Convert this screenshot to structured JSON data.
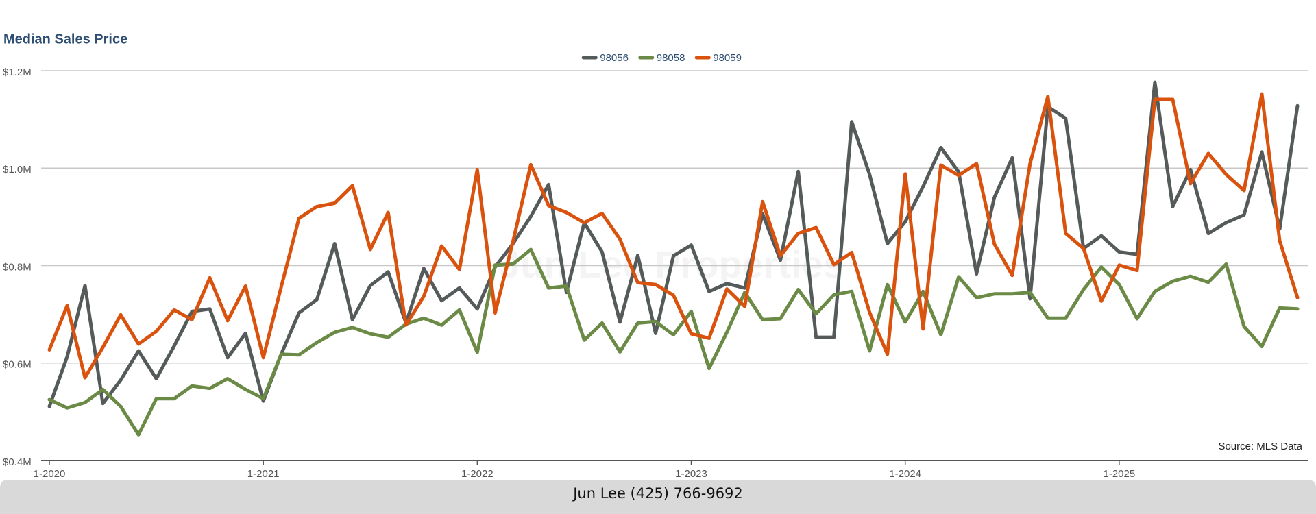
{
  "chart_data": {
    "type": "line",
    "title": "Median Sales Price",
    "watermark": "Jun Lee Properties",
    "source": "Source: MLS Data",
    "footer": "Jun Lee (425) 766-9692",
    "categories": [
      "1-2020",
      null,
      null,
      null,
      null,
      null,
      null,
      null,
      null,
      null,
      null,
      null,
      "1-2021",
      null,
      null,
      null,
      null,
      null,
      null,
      null,
      null,
      null,
      null,
      null,
      "1-2022",
      null,
      null,
      null,
      null,
      null,
      null,
      null,
      null,
      null,
      null,
      null,
      "1-2023",
      null,
      null,
      null,
      null,
      null,
      null,
      null,
      null,
      null,
      null,
      null,
      "1-2024",
      null,
      null,
      null,
      null,
      null,
      null,
      null,
      null,
      null,
      null,
      null,
      "1-2025",
      null,
      null,
      null,
      null,
      null,
      null,
      null,
      null,
      null,
      null
    ],
    "series": [
      {
        "name": "98056",
        "color": "#555b5a",
        "values": [
          511000,
          613000,
          759000,
          517000,
          565000,
          625000,
          568000,
          635000,
          706000,
          711000,
          611000,
          661000,
          522000,
          618000,
          703000,
          730000,
          845000,
          689000,
          759000,
          787000,
          682000,
          794000,
          728000,
          754000,
          711000,
          797000,
          845000,
          901000,
          966000,
          745000,
          888000,
          828000,
          684000,
          821000,
          661000,
          820000,
          842000,
          747000,
          763000,
          754000,
          906000,
          811000,
          993000,
          653000,
          653000,
          1095000,
          987000,
          845000,
          890000,
          962000,
          1042000,
          992000,
          783000,
          940000,
          1021000,
          732000,
          1126000,
          1102000,
          835000,
          861000,
          828000,
          823000,
          1176000,
          921000,
          997000,
          866000,
          888000,
          904000,
          1033000,
          875000,
          1128000
        ]
      },
      {
        "name": "98058",
        "color": "#6a8a45",
        "values": [
          525000,
          508000,
          519000,
          546000,
          511000,
          453000,
          527000,
          527000,
          553000,
          548000,
          568000,
          546000,
          527000,
          618000,
          617000,
          642000,
          663000,
          673000,
          660000,
          653000,
          680000,
          692000,
          678000,
          709000,
          622000,
          801000,
          803000,
          833000,
          754000,
          758000,
          647000,
          682000,
          623000,
          682000,
          685000,
          658000,
          706000,
          589000,
          663000,
          745000,
          689000,
          691000,
          751000,
          701000,
          740000,
          747000,
          625000,
          761000,
          684000,
          747000,
          658000,
          777000,
          734000,
          742000,
          742000,
          745000,
          692000,
          692000,
          751000,
          797000,
          761000,
          691000,
          747000,
          768000,
          778000,
          766000,
          803000,
          675000,
          634000,
          713000,
          711000
        ]
      },
      {
        "name": "98059",
        "color": "#d9530f",
        "values": [
          627000,
          718000,
          570000,
          632000,
          699000,
          639000,
          665000,
          709000,
          689000,
          775000,
          687000,
          758000,
          611000,
          756000,
          897000,
          921000,
          928000,
          964000,
          833000,
          909000,
          678000,
          737000,
          840000,
          792000,
          997000,
          703000,
          849000,
          1007000,
          923000,
          909000,
          888000,
          907000,
          854000,
          765000,
          761000,
          739000,
          660000,
          651000,
          752000,
          716000,
          931000,
          820000,
          866000,
          878000,
          802000,
          827000,
          704000,
          618000,
          988000,
          670000,
          1006000,
          985000,
          1009000,
          844000,
          780000,
          1009000,
          1147000,
          866000,
          835000,
          727000,
          801000,
          790000,
          1141000,
          1141000,
          968000,
          1030000,
          987000,
          954000,
          1152000,
          851000,
          734000
        ]
      }
    ],
    "ylim": [
      400000,
      1200000
    ],
    "yticks": [
      {
        "value": 400000,
        "label": "$0.4M"
      },
      {
        "value": 600000,
        "label": "$0.6M"
      },
      {
        "value": 800000,
        "label": "$0.8M"
      },
      {
        "value": 1000000,
        "label": "$1.0M"
      },
      {
        "value": 1200000,
        "label": "$1.2M"
      }
    ],
    "grid": true,
    "legend": "top"
  }
}
